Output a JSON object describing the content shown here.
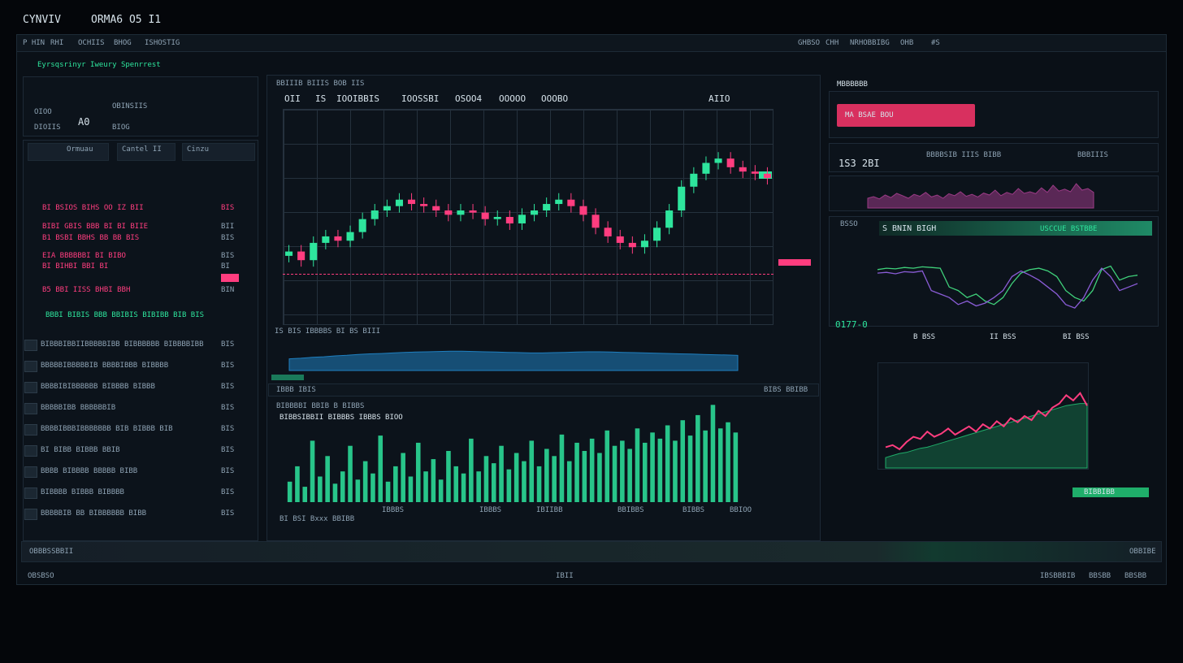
{
  "app": {
    "brand": "CYNVIV",
    "subtitle": "ORMA6 O5 I1"
  },
  "nav": {
    "left": [
      "P HIN",
      "RHI",
      "OCHIIS",
      "BHOG",
      "ISHOSTIG"
    ],
    "right": [
      "GHBSO",
      "CHH",
      "NRHOBBIBG",
      "OHB",
      "#S"
    ]
  },
  "left_panel": {
    "header": "Eyrsqsrinyr Iweury Spenrrest",
    "stats": [
      "OIOO",
      "DIOIIS",
      "A0",
      "OBINSIIS",
      "BIOG"
    ],
    "tabs": [
      "Ormuau",
      "Cantel II",
      "Cinzu"
    ],
    "orders": [
      {
        "text": "BI BSIOS BIHS OO IZ BII",
        "value": "BIS"
      },
      {
        "text": "BIBI GBIS BBB BI BI BIIE",
        "value": "BII"
      },
      {
        "text": "B1 BSBI BBHS BB BB BIS",
        "value": "BIS"
      },
      {
        "text": "EIA BBBBBBI BI BIBO",
        "value": "BIS"
      },
      {
        "text": "BI BIHBI BBI BI",
        "value": "BI"
      },
      {
        "text": "B5 BBI IISS BHBI BBH",
        "value": "BIN"
      }
    ],
    "summary": "BBBI BIBIS BBB BBIBIS BIBIBB BIB BIS",
    "feed": [
      {
        "text": "BIBBBIBBIIBBBBBIBB BIBBBBBB BIBBBBIBB",
        "value": "BIS"
      },
      {
        "text": "BBBBBIBBBBBIB BBBBIBBB BIBBBB",
        "value": "BIS"
      },
      {
        "text": "BBBBIBIBBBBBB BIBBBB BIBBB",
        "value": "BIS"
      },
      {
        "text": "BBBBBIBB BBBBBBIB",
        "value": "BIS"
      },
      {
        "text": "BBBBIBBBIBBBBBBB BIB BIBBB BIB",
        "value": "BIS"
      },
      {
        "text": "BI BIBB BIBBB BBIB",
        "value": "BIS"
      },
      {
        "text": "BBBB BIBBBB BBBBB BIBB",
        "value": "BIS"
      },
      {
        "text": "BIBBBB BIBBB BIBBBB",
        "value": "BIS"
      },
      {
        "text": "BBBBBIB BB BIBBBBBB BIBB",
        "value": "BIS"
      }
    ]
  },
  "center": {
    "header": "BBIIIB BIIIS BOB IIS",
    "prices": [
      "OII",
      "IS",
      "IOOIBBIS",
      "IOOSSBI",
      "OSOO4",
      "OOOOO",
      "OOOBO"
    ],
    "pair": "AIIO",
    "caption": "IS BIS IBBBBS BI BS BIII",
    "toolbar": "IBBB IBIS",
    "toolbar_right": "BIBS BBIBB",
    "volume_header": "BIBBBBI BBIB B BIBBS",
    "volume_row": "BIBBSIBBII BIBBBS IBBBS BIOO",
    "volume_note": "BI BSI Bxxx BBIBB",
    "volume_axis": [
      "IBBBS",
      "IBBBS",
      "IBIIBB",
      "BBIBBS",
      "BIBBS",
      "BBIOO"
    ]
  },
  "right_panel": {
    "header": "MBBBBBB",
    "button": "MA BSAE BOU",
    "price": "1S3 2BI",
    "pair": "BBBBSIB IIIS BIBB",
    "pair_right": "BBBIIIS",
    "banner": "S BNIN BIGH",
    "banner_right": "USCCUE BSTBBE",
    "stat": "0177-0",
    "stat_left": "BSSO",
    "labels": [
      "B BSS",
      "II BSS",
      "BI BSS"
    ],
    "action": "BIBBIBB"
  },
  "footer": {
    "bar_left": "OBBBSSBBII",
    "bar_right": "OBBIBE",
    "left": "OBSBSO",
    "center": "IBII",
    "right": [
      "IBSBBBIB",
      "BBSBB",
      "BBSBB"
    ]
  },
  "charts": {
    "candles": {
      "type": "candlestick",
      "ylim": [
        0,
        100
      ],
      "up_color": "#2ee59d",
      "down_color": "#ff3d7f",
      "open": [
        32,
        34,
        30,
        38,
        41,
        39,
        43,
        49,
        53,
        55,
        58,
        56,
        55,
        53,
        51,
        53,
        52,
        49,
        50,
        47,
        51,
        53,
        56,
        58,
        55,
        51,
        45,
        41,
        38,
        36,
        39,
        45,
        53,
        64,
        70,
        75,
        77,
        73,
        71,
        70
      ],
      "high": [
        37,
        37,
        41,
        44,
        44,
        46,
        52,
        56,
        58,
        61,
        61,
        59,
        58,
        56,
        56,
        56,
        55,
        53,
        53,
        54,
        56,
        59,
        61,
        61,
        58,
        54,
        48,
        44,
        41,
        42,
        48,
        56,
        67,
        73,
        78,
        80,
        80,
        76,
        74,
        73
      ],
      "low": [
        29,
        27,
        27,
        35,
        36,
        36,
        40,
        46,
        50,
        52,
        53,
        52,
        50,
        48,
        48,
        49,
        46,
        46,
        44,
        44,
        48,
        50,
        53,
        52,
        48,
        42,
        38,
        35,
        33,
        33,
        36,
        42,
        50,
        61,
        67,
        72,
        70,
        68,
        67,
        65
      ],
      "close": [
        34,
        30,
        38,
        41,
        39,
        43,
        49,
        53,
        55,
        58,
        56,
        55,
        53,
        51,
        53,
        52,
        49,
        50,
        47,
        51,
        53,
        56,
        58,
        55,
        51,
        45,
        41,
        38,
        36,
        39,
        45,
        53,
        64,
        70,
        75,
        77,
        73,
        71,
        70,
        68
      ]
    },
    "depth": {
      "type": "area",
      "ylim": [
        0,
        100
      ],
      "color": "#1f7fbf",
      "values": [
        40,
        42,
        45,
        47,
        50,
        52,
        55,
        57,
        58,
        60,
        62,
        63,
        64,
        65,
        66,
        66,
        65,
        64,
        63,
        62,
        61,
        60,
        60,
        61,
        62,
        63,
        64,
        64,
        63,
        62,
        61,
        60,
        59,
        58,
        57,
        56,
        55,
        54,
        53,
        52
      ]
    },
    "volume": {
      "type": "bars",
      "ylim": [
        0,
        100
      ],
      "color": "#2ee59d",
      "values": [
        20,
        35,
        15,
        60,
        25,
        45,
        18,
        30,
        55,
        22,
        40,
        28,
        65,
        20,
        35,
        48,
        25,
        58,
        30,
        42,
        22,
        50,
        35,
        28,
        62,
        30,
        45,
        38,
        55,
        32,
        48,
        40,
        60,
        35,
        52,
        45,
        66,
        40,
        58,
        50,
        62,
        48,
        70,
        55,
        60,
        52,
        72,
        58,
        68,
        62,
        75,
        60,
        80,
        65,
        85,
        70,
        95,
        72,
        78,
        68
      ]
    },
    "pulse": {
      "type": "area",
      "ylim": [
        0,
        100
      ],
      "color": "#9b3b86",
      "values": [
        30,
        35,
        28,
        40,
        32,
        45,
        38,
        30,
        42,
        36,
        48,
        34,
        40,
        30,
        44,
        38,
        50,
        36,
        42,
        34,
        46,
        40,
        55,
        38,
        48,
        42,
        60,
        45,
        50,
        44,
        62,
        48,
        70,
        52,
        58,
        50,
        75,
        55,
        60,
        48
      ]
    },
    "lines": {
      "type": "lines",
      "ylim": [
        0,
        100
      ],
      "series": [
        {
          "color": "#3fd07a",
          "values": [
            70,
            72,
            71,
            73,
            72,
            74,
            73,
            72,
            45,
            40,
            30,
            35,
            25,
            20,
            30,
            50,
            65,
            70,
            72,
            68,
            60,
            40,
            30,
            25,
            40,
            70,
            75,
            55,
            60,
            62
          ]
        },
        {
          "color": "#8a5cd6",
          "values": [
            65,
            66,
            64,
            67,
            66,
            68,
            40,
            35,
            30,
            20,
            25,
            18,
            22,
            30,
            40,
            60,
            68,
            62,
            55,
            45,
            35,
            20,
            15,
            30,
            55,
            72,
            60,
            40,
            45,
            50
          ]
        }
      ]
    },
    "trend": {
      "type": "band-line",
      "ylim": [
        0,
        100
      ],
      "band_color": "#1fae6a",
      "color": "#ff3d7f",
      "band": [
        10,
        12,
        14,
        15,
        17,
        19,
        20,
        22,
        24,
        26,
        28,
        30,
        32,
        34,
        36,
        38,
        40,
        42,
        44,
        46,
        48,
        50,
        52,
        54,
        56,
        58,
        60,
        61,
        62,
        62
      ],
      "values": [
        20,
        22,
        18,
        25,
        30,
        28,
        35,
        30,
        33,
        38,
        32,
        36,
        40,
        35,
        42,
        38,
        45,
        40,
        48,
        44,
        50,
        46,
        55,
        50,
        58,
        62,
        70,
        65,
        72,
        60
      ]
    }
  }
}
